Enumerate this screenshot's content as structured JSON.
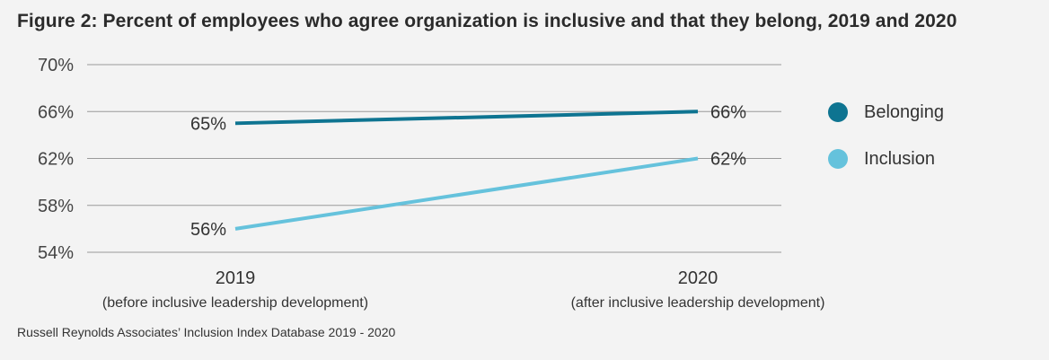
{
  "title": "Figure 2:  Percent of employees who agree organization is inclusive and that they belong, 2019 and 2020",
  "source": "Russell Reynolds Associates’ Inclusion Index Database 2019 - 2020",
  "chart_data": {
    "type": "line",
    "title": "Figure 2:  Percent of employees who agree organization is inclusive and that they belong, 2019 and 2020",
    "categories": [
      "2019",
      "2020"
    ],
    "category_sublabels": [
      "(before inclusive leadership development)",
      "(after inclusive leadership development)"
    ],
    "y_ticks": [
      54,
      58,
      62,
      66,
      70
    ],
    "y_tick_labels": [
      "54%",
      "58%",
      "62%",
      "66%",
      "70%"
    ],
    "ylim": [
      54,
      70
    ],
    "grid": true,
    "legend_position": "right",
    "series": [
      {
        "name": "Belonging",
        "values": [
          65,
          66
        ],
        "value_labels": [
          "65%",
          "66%"
        ],
        "color": "#0e7491"
      },
      {
        "name": "Inclusion",
        "values": [
          56,
          62
        ],
        "value_labels": [
          "56%",
          "62%"
        ],
        "color": "#65c2dc"
      }
    ]
  }
}
